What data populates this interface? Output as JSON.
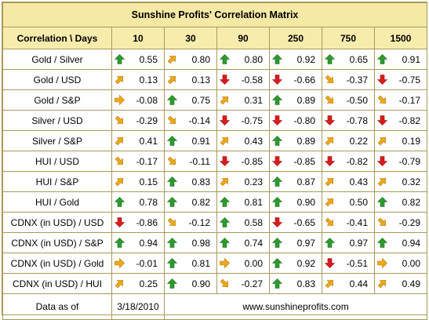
{
  "title": "Sunshine Profits' Correlation Matrix",
  "header_label": "Correlation \\ Days",
  "periods": [
    "10",
    "30",
    "90",
    "250",
    "750",
    "1500"
  ],
  "colors": {
    "up": "#2e9a2e",
    "down": "#d81c1c",
    "side": "#f0a818",
    "header_bg": "#f8ecad",
    "border": "#a79a5a"
  },
  "rows": [
    {
      "label": "Gold / Silver",
      "cells": [
        {
          "v": "0.55",
          "icon": "up-arrow-icon"
        },
        {
          "v": "0.80",
          "icon": "up-right-arrow-icon"
        },
        {
          "v": "0.80",
          "icon": "up-arrow-icon"
        },
        {
          "v": "0.92",
          "icon": "up-arrow-icon"
        },
        {
          "v": "0.65",
          "icon": "up-arrow-icon"
        },
        {
          "v": "0.91",
          "icon": "up-arrow-icon"
        }
      ]
    },
    {
      "label": "Gold / USD",
      "cells": [
        {
          "v": "0.13",
          "icon": "up-right-arrow-icon"
        },
        {
          "v": "0.13",
          "icon": "up-right-arrow-icon"
        },
        {
          "v": "-0.58",
          "icon": "down-arrow-icon"
        },
        {
          "v": "-0.66",
          "icon": "down-arrow-icon"
        },
        {
          "v": "-0.37",
          "icon": "down-right-arrow-icon"
        },
        {
          "v": "-0.75",
          "icon": "down-arrow-icon"
        }
      ]
    },
    {
      "label": "Gold / S&P",
      "cells": [
        {
          "v": "-0.08",
          "icon": "right-arrow-icon"
        },
        {
          "v": "0.75",
          "icon": "up-arrow-icon"
        },
        {
          "v": "0.31",
          "icon": "up-right-arrow-icon"
        },
        {
          "v": "0.89",
          "icon": "up-arrow-icon"
        },
        {
          "v": "-0.50",
          "icon": "down-right-arrow-icon"
        },
        {
          "v": "-0.17",
          "icon": "down-right-arrow-icon"
        }
      ]
    },
    {
      "label": "Silver / USD",
      "cells": [
        {
          "v": "-0.29",
          "icon": "down-right-arrow-icon"
        },
        {
          "v": "-0.14",
          "icon": "down-right-arrow-icon"
        },
        {
          "v": "-0.75",
          "icon": "down-arrow-icon"
        },
        {
          "v": "-0.80",
          "icon": "down-arrow-icon"
        },
        {
          "v": "-0.78",
          "icon": "down-arrow-icon"
        },
        {
          "v": "-0.82",
          "icon": "down-arrow-icon"
        }
      ]
    },
    {
      "label": "Silver / S&P",
      "cells": [
        {
          "v": "0.41",
          "icon": "up-right-arrow-icon"
        },
        {
          "v": "0.91",
          "icon": "up-arrow-icon"
        },
        {
          "v": "0.43",
          "icon": "up-right-arrow-icon"
        },
        {
          "v": "0.89",
          "icon": "up-arrow-icon"
        },
        {
          "v": "0.22",
          "icon": "up-right-arrow-icon"
        },
        {
          "v": "0.19",
          "icon": "up-right-arrow-icon"
        }
      ]
    },
    {
      "label": "HUI / USD",
      "cells": [
        {
          "v": "-0.17",
          "icon": "down-right-arrow-icon"
        },
        {
          "v": "-0.11",
          "icon": "down-right-arrow-icon"
        },
        {
          "v": "-0.85",
          "icon": "down-arrow-icon"
        },
        {
          "v": "-0.85",
          "icon": "down-arrow-icon"
        },
        {
          "v": "-0.82",
          "icon": "down-arrow-icon"
        },
        {
          "v": "-0.79",
          "icon": "down-arrow-icon"
        }
      ]
    },
    {
      "label": "HUI / S&P",
      "cells": [
        {
          "v": "0.15",
          "icon": "up-right-arrow-icon"
        },
        {
          "v": "0.83",
          "icon": "up-arrow-icon"
        },
        {
          "v": "0.23",
          "icon": "up-right-arrow-icon"
        },
        {
          "v": "0.87",
          "icon": "up-arrow-icon"
        },
        {
          "v": "0.43",
          "icon": "up-right-arrow-icon"
        },
        {
          "v": "0.32",
          "icon": "up-right-arrow-icon"
        }
      ]
    },
    {
      "label": "HUI / Gold",
      "cells": [
        {
          "v": "0.78",
          "icon": "up-arrow-icon"
        },
        {
          "v": "0.82",
          "icon": "up-arrow-icon"
        },
        {
          "v": "0.81",
          "icon": "up-arrow-icon"
        },
        {
          "v": "0.90",
          "icon": "up-arrow-icon"
        },
        {
          "v": "0.50",
          "icon": "up-right-arrow-icon"
        },
        {
          "v": "0.82",
          "icon": "up-arrow-icon"
        }
      ]
    },
    {
      "label": "CDNX (in USD) / USD",
      "cells": [
        {
          "v": "-0.86",
          "icon": "down-arrow-icon"
        },
        {
          "v": "-0.12",
          "icon": "down-right-arrow-icon"
        },
        {
          "v": "0.58",
          "icon": "up-arrow-icon"
        },
        {
          "v": "-0.65",
          "icon": "down-arrow-icon"
        },
        {
          "v": "-0.41",
          "icon": "down-right-arrow-icon"
        },
        {
          "v": "-0.29",
          "icon": "down-right-arrow-icon"
        }
      ]
    },
    {
      "label": "CDNX (in USD) / S&P",
      "cells": [
        {
          "v": "0.94",
          "icon": "up-arrow-icon"
        },
        {
          "v": "0.98",
          "icon": "up-arrow-icon"
        },
        {
          "v": "0.74",
          "icon": "up-arrow-icon"
        },
        {
          "v": "0.97",
          "icon": "up-arrow-icon"
        },
        {
          "v": "0.97",
          "icon": "up-arrow-icon"
        },
        {
          "v": "0.94",
          "icon": "up-arrow-icon"
        }
      ]
    },
    {
      "label": "CDNX (in USD) / Gold",
      "cells": [
        {
          "v": "-0.01",
          "icon": "right-arrow-icon"
        },
        {
          "v": "0.81",
          "icon": "up-arrow-icon"
        },
        {
          "v": "0.00",
          "icon": "right-arrow-icon"
        },
        {
          "v": "0.92",
          "icon": "up-arrow-icon"
        },
        {
          "v": "-0.51",
          "icon": "down-arrow-icon"
        },
        {
          "v": "0.00",
          "icon": "right-arrow-icon"
        }
      ]
    },
    {
      "label": "CDNX (in USD) / HUI",
      "cells": [
        {
          "v": "0.25",
          "icon": "up-right-arrow-icon"
        },
        {
          "v": "0.90",
          "icon": "up-arrow-icon"
        },
        {
          "v": "-0.27",
          "icon": "down-right-arrow-icon"
        },
        {
          "v": "0.83",
          "icon": "up-arrow-icon"
        },
        {
          "v": "0.44",
          "icon": "up-right-arrow-icon"
        },
        {
          "v": "0.49",
          "icon": "up-right-arrow-icon"
        }
      ]
    }
  ],
  "footer": {
    "label": "Data as of",
    "date": "3/18/2010",
    "site": "www.sunshineprofits.com"
  }
}
